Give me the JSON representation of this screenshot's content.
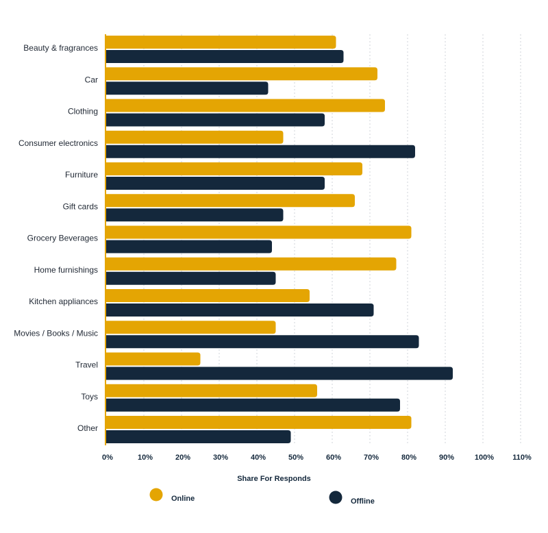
{
  "chart_data": {
    "type": "bar",
    "orientation": "horizontal",
    "categories": [
      "Beauty & fragrances",
      "Car",
      "Clothing",
      "Consumer electronics",
      "Furniture",
      "Gift cards",
      "Grocery Beverages",
      "Home furnishings",
      "Kitchen appliances",
      "Movies / Books / Music",
      "Travel",
      "Toys",
      "Other"
    ],
    "series": [
      {
        "name": "Online",
        "color": "#e4a503",
        "values": [
          61,
          72,
          74,
          47,
          68,
          66,
          81,
          77,
          54,
          45,
          25,
          56,
          81
        ]
      },
      {
        "name": "Offline",
        "color": "#14283c",
        "values": [
          63,
          43,
          58,
          82,
          58,
          47,
          44,
          45,
          71,
          83,
          92,
          78,
          49
        ]
      }
    ],
    "xlabel": "Share For Responds",
    "ylabel": "",
    "xlim": [
      0,
      110
    ],
    "ticks": [
      0,
      10,
      20,
      30,
      40,
      50,
      60,
      70,
      80,
      90,
      100,
      110
    ],
    "tick_labels": [
      "0%",
      "10%",
      "20%",
      "30%",
      "40%",
      "50%",
      "60%",
      "70%",
      "80%",
      "90%",
      "100%",
      "110%"
    ],
    "grid": "vertical dotted",
    "legend": "bottom-center"
  }
}
